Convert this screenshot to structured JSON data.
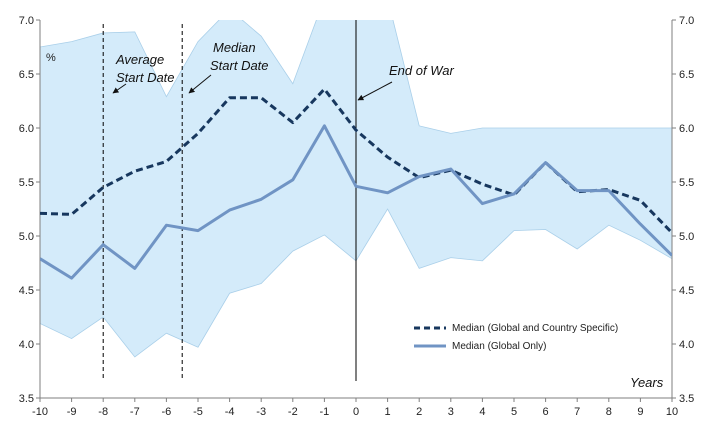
{
  "chart_data": {
    "type": "line",
    "x": [
      -10,
      -9,
      -8,
      -7,
      -6,
      -5,
      -4,
      -3,
      -2,
      -1,
      0,
      1,
      2,
      3,
      4,
      5,
      6,
      7,
      8,
      9,
      10
    ],
    "xlim": [
      -10,
      10
    ],
    "ylim": [
      3.5,
      7.0
    ],
    "yticks": [
      "3.5",
      "4.0",
      "4.5",
      "5.0",
      "5.5",
      "6.0",
      "6.5",
      "7.0"
    ],
    "xticks": [
      "-10",
      "-9",
      "-8",
      "-7",
      "-6",
      "-5",
      "-4",
      "-3",
      "-2",
      "-1",
      "0",
      "1",
      "2",
      "3",
      "4",
      "5",
      "6",
      "7",
      "8",
      "9",
      "10"
    ],
    "y_unit_label": "%",
    "x_axis_label": "Years",
    "band": {
      "upper": [
        6.75,
        6.8,
        6.88,
        6.89,
        6.29,
        6.8,
        7.1,
        6.85,
        6.41,
        7.2,
        7.2,
        7.2,
        6.02,
        5.95,
        6.0,
        6.0,
        6.0,
        6.0,
        6.0,
        6.0,
        6.0
      ],
      "lower": [
        4.19,
        4.05,
        4.25,
        3.88,
        4.1,
        3.97,
        4.47,
        4.56,
        4.86,
        5.01,
        4.77,
        5.25,
        4.7,
        4.8,
        4.77,
        5.05,
        5.06,
        4.88,
        5.1,
        4.96,
        4.79
      ],
      "color": "#d4ebfa"
    },
    "series": [
      {
        "name": "Median (Global and Country Specific)",
        "x": [
          -10,
          -9,
          -8,
          -7,
          -6,
          -5.5,
          -5,
          -4,
          -3,
          -2,
          -1,
          0,
          1,
          2,
          3,
          4,
          5,
          6,
          7,
          8,
          9,
          10
        ],
        "values": [
          5.21,
          5.2,
          5.45,
          5.6,
          5.69,
          5.82,
          5.95,
          6.28,
          6.28,
          6.05,
          6.36,
          5.98,
          5.73,
          5.54,
          5.61,
          5.48,
          5.38,
          5.68,
          5.41,
          5.43,
          5.33,
          5.03
        ],
        "color": "#17375e",
        "style": "dashed"
      },
      {
        "name": "Median (Global Only)",
        "x": [
          -10,
          -9,
          -8,
          -7,
          -6,
          -5,
          -4,
          -3,
          -2,
          -1,
          0,
          1,
          2,
          3,
          4,
          5,
          6,
          7,
          8,
          9,
          10
        ],
        "values": [
          4.79,
          4.61,
          4.92,
          4.7,
          5.1,
          5.05,
          5.24,
          5.34,
          5.52,
          6.02,
          5.46,
          5.4,
          5.55,
          5.62,
          5.3,
          5.39,
          5.68,
          5.42,
          5.42,
          5.11,
          4.82
        ],
        "color": "#7094c4",
        "style": "solid"
      }
    ],
    "vlines": [
      {
        "x": -8,
        "style": "dashed",
        "label": "Average Start Date"
      },
      {
        "x": -5.5,
        "style": "dashed",
        "label": "Median Start Date"
      },
      {
        "x": 0,
        "style": "solid",
        "label": "End of War"
      }
    ],
    "annotations": [
      {
        "line1": "Average",
        "line2": "Start Date"
      },
      {
        "line1": "Median",
        "line2": "Start Date"
      },
      {
        "line1": "End of War",
        "line2": ""
      }
    ],
    "legend": {
      "placement": "bottom-right"
    },
    "grid": false
  }
}
